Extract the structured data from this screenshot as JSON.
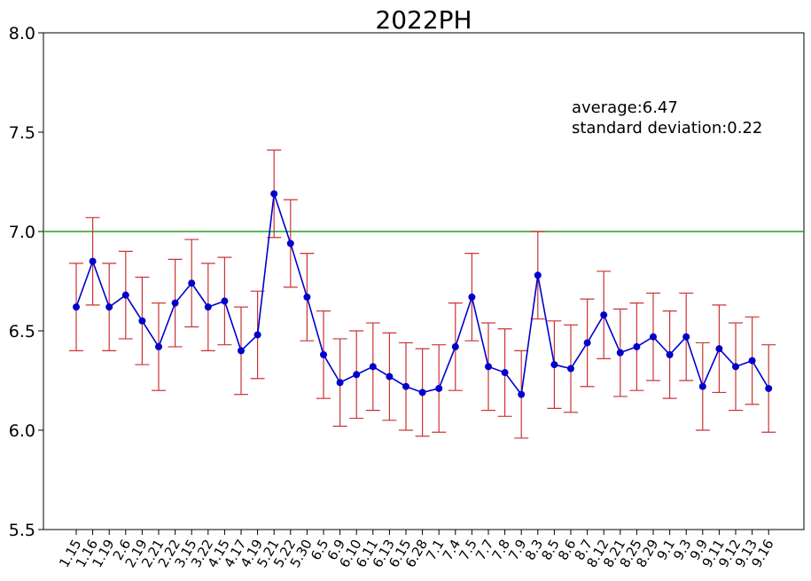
{
  "chart_data": {
    "type": "line",
    "title": "2022PH",
    "xlabel": "",
    "ylabel": "",
    "ylim": [
      5.5,
      8.0
    ],
    "yticks": [
      "5.5",
      "6.0",
      "6.5",
      "7.0",
      "7.5",
      "8.0"
    ],
    "ytick_values": [
      5.5,
      6.0,
      6.5,
      7.0,
      7.5,
      8.0
    ],
    "grid": false,
    "categories": [
      "1.15",
      "1.16",
      "1.19",
      "2.6",
      "2.19",
      "2.21",
      "2.22",
      "3.15",
      "3.22",
      "4.15",
      "4.17",
      "4.19",
      "5.21",
      "5.22",
      "5.30",
      "6.5",
      "6.9",
      "6.10",
      "6.11",
      "6.13",
      "6.15",
      "6.28",
      "7.1",
      "7.4",
      "7.5",
      "7.7",
      "7.8",
      "7.9",
      "8.3",
      "8.5",
      "8.6",
      "8.7",
      "8.12",
      "8.21",
      "8.25",
      "8.29",
      "9.1",
      "9.3",
      "9.9",
      "9.11",
      "9.12",
      "9.13",
      "9.16"
    ],
    "series": [
      {
        "values": [
          6.62,
          6.85,
          6.62,
          6.68,
          6.55,
          6.42,
          6.64,
          6.74,
          6.62,
          6.65,
          6.4,
          6.48,
          7.19,
          6.94,
          6.67,
          6.38,
          6.24,
          6.28,
          6.32,
          6.27,
          6.22,
          6.19,
          6.21,
          6.42,
          6.67,
          6.32,
          6.29,
          6.18,
          6.78,
          6.33,
          6.31,
          6.44,
          6.58,
          6.39,
          6.42,
          6.47,
          6.38,
          6.47,
          6.22,
          6.41,
          6.32,
          6.35,
          6.21
        ],
        "error": 0.22,
        "color": "#0000cc",
        "error_color": "#cc3333"
      }
    ],
    "reference_line": {
      "y": 7.0,
      "color": "#22a022"
    },
    "annotations": [
      "average:6.47",
      "standard deviation:0.22"
    ]
  }
}
